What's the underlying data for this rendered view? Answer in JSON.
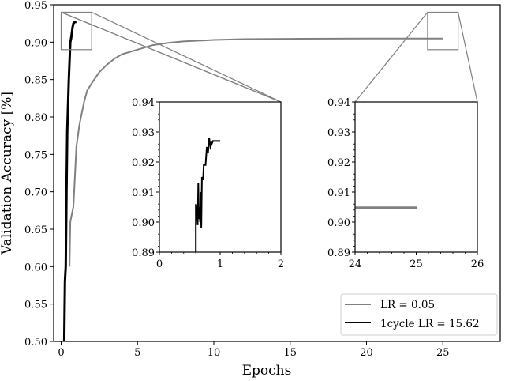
{
  "chart_data": {
    "type": "line",
    "xlabel": "Epochs",
    "ylabel": "Validation Accuracy [%]",
    "xlim": [
      -0.5,
      28.8
    ],
    "ylim": [
      0.5,
      0.95
    ],
    "xticks": [
      0,
      5,
      10,
      15,
      20,
      25
    ],
    "yticks": [
      0.5,
      0.55,
      0.6,
      0.65,
      0.7,
      0.75,
      0.8,
      0.85,
      0.9,
      0.95
    ],
    "legend": {
      "position": "lower right",
      "entries": [
        "LR = 0.05",
        "1cycle LR = 15.62"
      ]
    },
    "series": [
      {
        "name": "LR = 0.05",
        "color": "#808080",
        "x": [
          0.55,
          0.6,
          0.8,
          0.9,
          1.0,
          1.2,
          1.5,
          1.7,
          2.0,
          2.5,
          3.0,
          3.5,
          4.0,
          5.0,
          6.0,
          7.0,
          8.0,
          10.0,
          12.0,
          15.0,
          20.0,
          25.0
        ],
        "y": [
          0.6,
          0.66,
          0.68,
          0.72,
          0.76,
          0.79,
          0.82,
          0.835,
          0.845,
          0.86,
          0.87,
          0.878,
          0.884,
          0.89,
          0.896,
          0.899,
          0.901,
          0.903,
          0.904,
          0.9045,
          0.9048,
          0.9048
        ]
      },
      {
        "name": "1cycle LR = 15.62",
        "color": "#000000",
        "x": [
          0.2,
          0.25,
          0.3,
          0.35,
          0.4,
          0.5,
          0.6,
          0.65,
          0.7,
          0.75,
          0.8,
          0.85,
          0.9,
          1.0
        ],
        "y": [
          0.5,
          0.58,
          0.6,
          0.7,
          0.78,
          0.85,
          0.9,
          0.905,
          0.912,
          0.92,
          0.925,
          0.926,
          0.927,
          0.927
        ]
      }
    ],
    "insets": [
      {
        "xlim": [
          0,
          2
        ],
        "ylim": [
          0.89,
          0.94
        ],
        "xticks": [
          0,
          1,
          2
        ],
        "yticks": [
          0.89,
          0.9,
          0.91,
          0.92,
          0.93,
          0.94
        ],
        "zoom_region": "1cycle early epochs"
      },
      {
        "xlim": [
          24,
          26
        ],
        "ylim": [
          0.89,
          0.94
        ],
        "xticks": [
          24,
          25,
          26
        ],
        "yticks": [
          0.89,
          0.9,
          0.91,
          0.92,
          0.93,
          0.94
        ],
        "zoom_region": "LR=0.05 final epochs",
        "value": 0.905
      }
    ]
  },
  "labels": {
    "xlabel": "Epochs",
    "ylabel": "Validation Accuracy [%]",
    "legend_gray": "LR = 0.05",
    "legend_black": "1cycle LR = 15.62"
  }
}
